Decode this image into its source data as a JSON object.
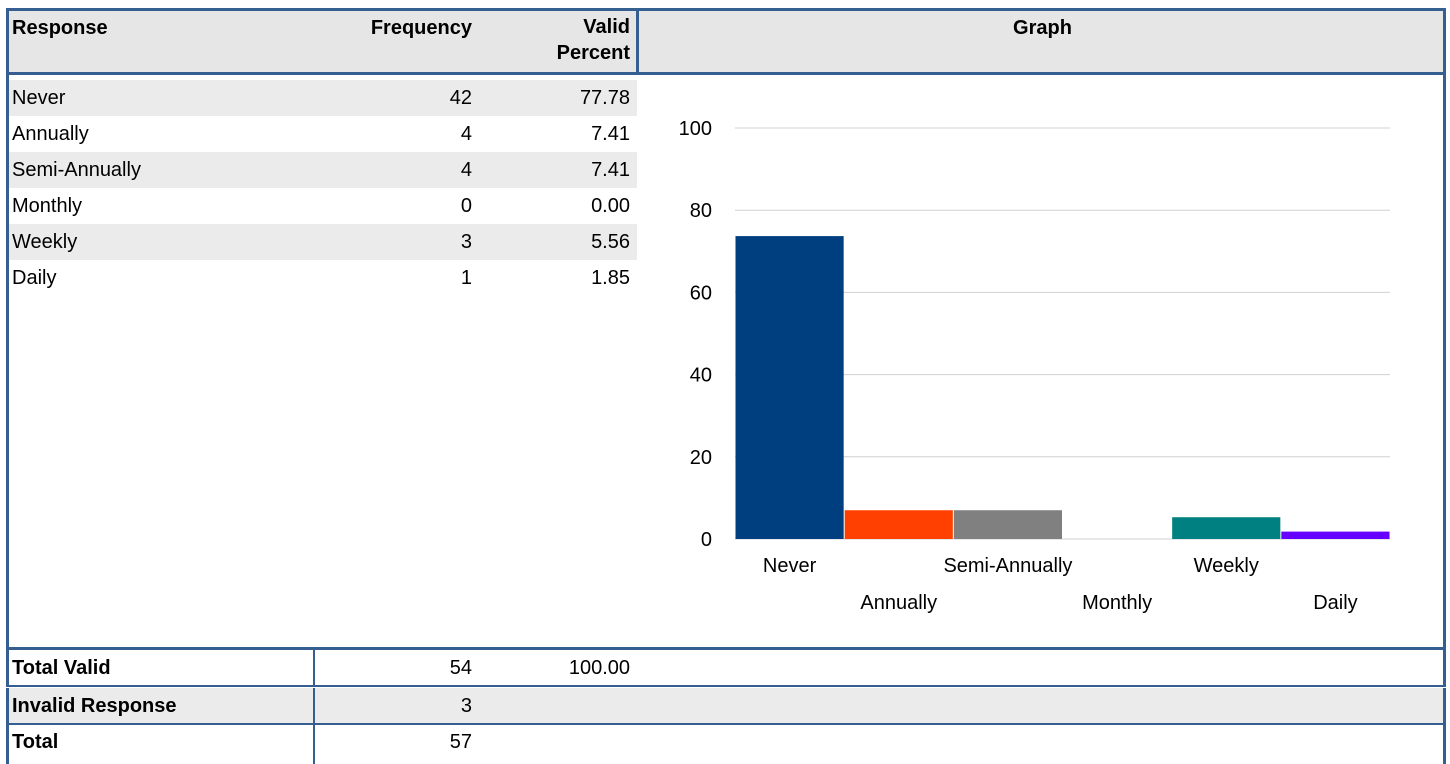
{
  "table": {
    "header": [
      "Response",
      "Frequency",
      "Valid Percent",
      "Graph"
    ],
    "rows": [
      [
        "Never",
        "42",
        "77.78"
      ],
      [
        "Annually",
        "4",
        "7.41"
      ],
      [
        "Semi-Annually",
        "4",
        "7.41"
      ],
      [
        "Monthly",
        "0",
        "0.00"
      ],
      [
        "Weekly",
        "3",
        "5.56"
      ],
      [
        "Daily",
        "1",
        "1.85"
      ]
    ],
    "footer": [
      [
        "Total Valid",
        "54",
        "100.00"
      ],
      [
        "Invalid Response",
        "3"
      ],
      [
        "Total",
        "57"
      ]
    ]
  },
  "chart_data": {
    "type": "bar",
    "categories": [
      "Never",
      "Annually",
      "Semi-Annually",
      "Monthly",
      "Weekly",
      "Daily"
    ],
    "values": [
      73.7,
      7.0,
      7.0,
      0,
      5.3,
      1.8
    ],
    "colors": [
      "#003f7f",
      "#ff4000",
      "#808080",
      "#808080",
      "#008080",
      "#6600ff"
    ],
    "ylim": [
      0,
      100
    ],
    "yticks": [
      0,
      20,
      40,
      60,
      80,
      100
    ],
    "grid": true
  }
}
